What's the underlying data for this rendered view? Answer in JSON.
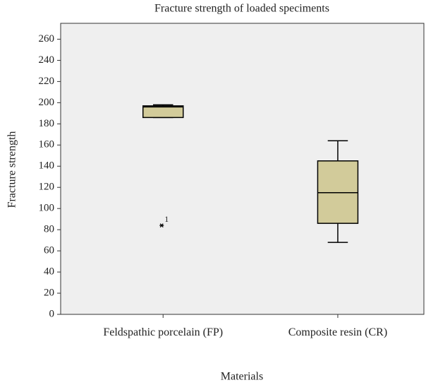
{
  "chart_data": {
    "type": "box",
    "title": "Fracture strength of loaded speciments",
    "xlabel": "Materials",
    "ylabel": "Fracture strength",
    "categories": [
      "Feldspathic porcelain (FP)",
      "Composite resin (CR)"
    ],
    "boxes": [
      {
        "whisker_low": 186,
        "q1": 186,
        "median": 196,
        "q3": 197,
        "whisker_high": 198
      },
      {
        "whisker_low": 68,
        "q1": 86,
        "median": 115,
        "q3": 145,
        "whisker_high": 164
      }
    ],
    "outliers": [
      {
        "category": 0,
        "value": 84,
        "label": "1"
      }
    ],
    "color": "#d2cb9a",
    "ylim": [
      0,
      275
    ],
    "yticks": [
      0,
      20,
      40,
      60,
      80,
      100,
      120,
      140,
      160,
      180,
      200,
      220,
      240,
      260
    ]
  }
}
